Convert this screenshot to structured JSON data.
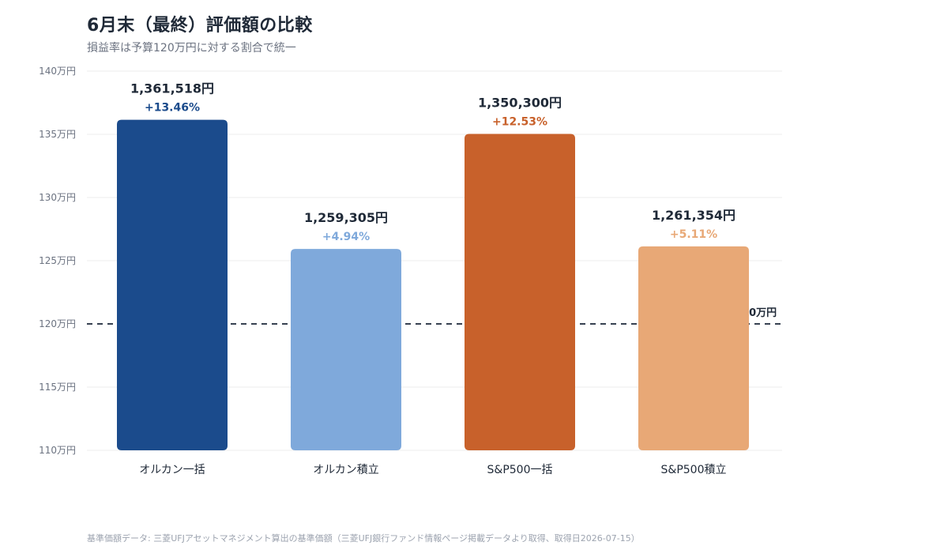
{
  "header": {
    "title": "6月末（最終）評価額の比較",
    "subtitle": "損益率は予算120万円に対する割合で統一"
  },
  "footer": {
    "note": "基準価額データ: 三菱UFJアセットマネジメント算出の基準価額（三菱UFJ銀行ファンド情報ページ掲載データより取得、取得日2026-07-15）"
  },
  "chart_data": {
    "type": "bar",
    "title": "6月末（最終）評価額の比較",
    "subtitle": "損益率は予算120万円に対する割合で統一",
    "xlabel": "",
    "ylabel": "",
    "unit": "万円",
    "ylim": [
      110,
      140
    ],
    "yticks": [
      110,
      115,
      120,
      125,
      130,
      135,
      140
    ],
    "ytick_labels": [
      "110万円",
      "115万円",
      "120万円",
      "125万円",
      "130万円",
      "135万円",
      "140万円"
    ],
    "grid": true,
    "legend": "none",
    "categories": [
      "オルカン一括",
      "オルカン積立",
      "S&P500一括",
      "S&P500積立"
    ],
    "values": [
      136.1518,
      125.9305,
      135.03,
      126.1354
    ],
    "value_labels": [
      "1,361,518円",
      "1,259,305円",
      "1,350,300円",
      "1,261,354円"
    ],
    "pct_labels": [
      "+13.46%",
      "+4.94%",
      "+12.53%",
      "+5.11%"
    ],
    "colors": [
      "#1b4b8c",
      "#7fa9db",
      "#c8612b",
      "#e8a876"
    ],
    "pct_colors": [
      "#1b4b8c",
      "#7fa9db",
      "#c8612b",
      "#e8a876"
    ],
    "reference_line": {
      "value": 120,
      "label": "120万円",
      "style": "dashed"
    }
  }
}
